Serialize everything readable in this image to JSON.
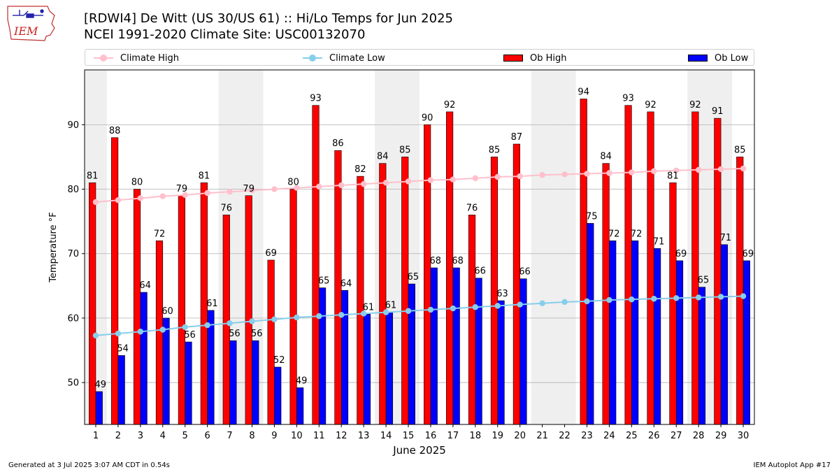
{
  "header": {
    "logo_text": "IEM",
    "title_line1": "[RDWI4] De Witt (US 30/US 61) :: Hi/Lo Temps for Jun 2025",
    "title_line2": "NCEI 1991-2020 Climate Site: USC00132070"
  },
  "legend": {
    "items": [
      {
        "label": "Climate High",
        "kind": "line",
        "color": "#ffc0cb"
      },
      {
        "label": "Climate Low",
        "kind": "line",
        "color": "#87ceeb"
      },
      {
        "label": "Ob High",
        "kind": "bar",
        "color": "#ff0000"
      },
      {
        "label": "Ob Low",
        "kind": "bar",
        "color": "#0000ff"
      }
    ]
  },
  "footer": {
    "generated": "Generated at 3 Jul 2025 3:07 AM CDT in 0.54s",
    "app": "IEM Autoplot App #17"
  },
  "chart_data": {
    "type": "bar",
    "xlabel": "June 2025",
    "ylabel": "Temperature °F",
    "ylim": [
      43.5,
      98.5
    ],
    "yticks": [
      50,
      60,
      70,
      80,
      90
    ],
    "grid": true,
    "legend_position": "top",
    "categories": [
      "1",
      "2",
      "3",
      "4",
      "5",
      "6",
      "7",
      "8",
      "9",
      "10",
      "11",
      "12",
      "13",
      "14",
      "15",
      "16",
      "17",
      "18",
      "19",
      "20",
      "21",
      "22",
      "23",
      "24",
      "25",
      "26",
      "27",
      "28",
      "29",
      "30"
    ],
    "weekend_shading_days": [
      1,
      7,
      8,
      14,
      15,
      21,
      22,
      28,
      29
    ],
    "series": [
      {
        "name": "Ob High",
        "kind": "bar",
        "color": "#ff0000",
        "values": [
          81,
          88,
          80,
          72,
          79,
          81,
          76,
          79,
          69,
          80,
          93,
          86,
          82,
          84,
          85,
          90,
          92,
          76,
          85,
          87,
          null,
          null,
          94,
          84,
          93,
          92,
          81,
          92,
          91,
          85
        ],
        "labels": [
          "81",
          "88",
          "80",
          "72",
          "79",
          "81",
          "76",
          "79",
          "69",
          "80",
          "93",
          "86",
          "82",
          "84",
          "85",
          "90",
          "92",
          "76",
          "85",
          "87",
          null,
          null,
          "94",
          "84",
          "93",
          "92",
          "81",
          "92",
          "91",
          "85"
        ]
      },
      {
        "name": "Ob Low",
        "kind": "bar",
        "color": "#0000ff",
        "values": [
          48.6,
          54.2,
          64,
          60,
          56.3,
          61.2,
          56.5,
          56.5,
          52.4,
          49.2,
          64.7,
          64.3,
          60.6,
          60.9,
          65.3,
          67.8,
          67.8,
          66.2,
          62.7,
          66.1,
          null,
          null,
          74.7,
          72,
          72,
          70.8,
          68.9,
          64.8,
          71.4,
          68.9
        ],
        "labels": [
          "49",
          "54",
          "64",
          "60",
          "56",
          "61",
          "56",
          "56",
          "52",
          "49",
          "65",
          "64",
          "61",
          "61",
          "65",
          "68",
          "68",
          "66",
          "63",
          "66",
          null,
          null,
          "75",
          "72",
          "72",
          "71",
          "69",
          "65",
          "71",
          "69"
        ]
      },
      {
        "name": "Climate High",
        "kind": "line",
        "color": "#ffc0cb",
        "values": [
          78.0,
          78.3,
          78.6,
          78.9,
          79.1,
          79.4,
          79.6,
          79.8,
          80.0,
          80.2,
          80.4,
          80.6,
          80.8,
          81.0,
          81.2,
          81.4,
          81.5,
          81.7,
          81.9,
          82.0,
          82.2,
          82.3,
          82.4,
          82.5,
          82.6,
          82.8,
          82.9,
          83.0,
          83.1,
          83.2
        ]
      },
      {
        "name": "Climate Low",
        "kind": "line",
        "color": "#87ceeb",
        "values": [
          57.3,
          57.6,
          57.9,
          58.2,
          58.6,
          58.9,
          59.2,
          59.5,
          59.8,
          60.1,
          60.3,
          60.5,
          60.7,
          60.9,
          61.1,
          61.3,
          61.5,
          61.7,
          61.9,
          62.1,
          62.3,
          62.5,
          62.6,
          62.8,
          62.9,
          63.0,
          63.1,
          63.2,
          63.3,
          63.4
        ]
      }
    ]
  }
}
